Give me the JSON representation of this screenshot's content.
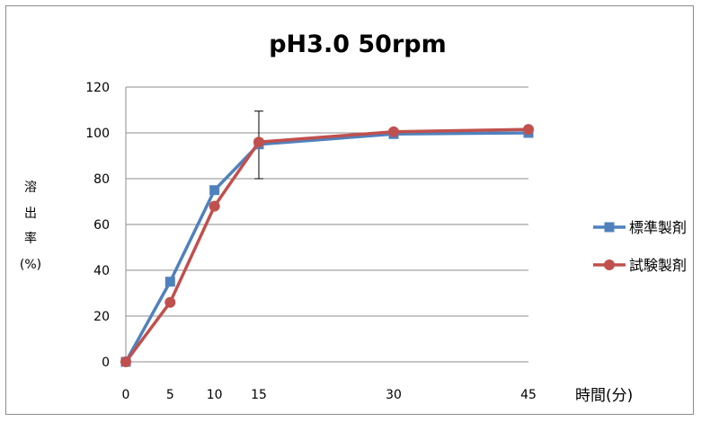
{
  "chart_data": {
    "type": "line",
    "title": "pH3.0  50rpm",
    "xlabel": "時間(分)",
    "ylabel_lines": [
      "溶",
      "出",
      "率",
      "(%)"
    ],
    "x": [
      0,
      5,
      10,
      15,
      30,
      45
    ],
    "ylim": [
      0,
      120
    ],
    "y_ticks": [
      0,
      20,
      40,
      60,
      80,
      100,
      120
    ],
    "grid": true,
    "legend_position": "right",
    "series": [
      {
        "name": "標準製剤",
        "color": "#4f81bd",
        "marker": "square",
        "values": [
          0,
          35,
          75,
          95,
          99.5,
          100
        ]
      },
      {
        "name": "試験製剤",
        "color": "#c0504d",
        "marker": "circle",
        "values": [
          0,
          26,
          68,
          96,
          100.5,
          101.5
        ]
      }
    ],
    "error_bars": [
      {
        "x": 15,
        "low": 80,
        "high": 109.5
      }
    ]
  }
}
